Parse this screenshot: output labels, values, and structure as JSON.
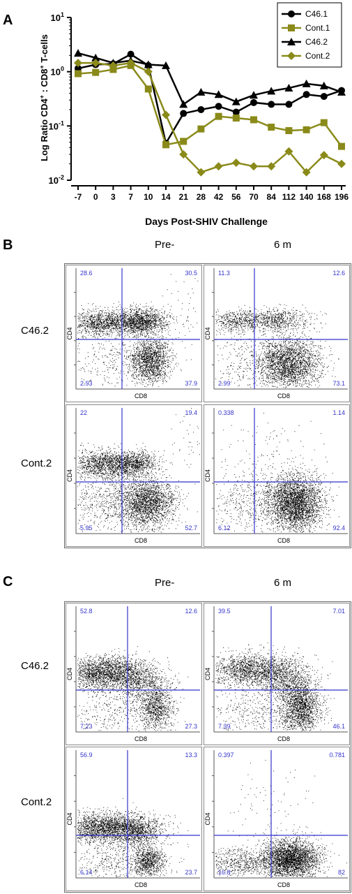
{
  "panel_a": {
    "letter": "A",
    "ylabel_main": "Log Ratio CD4",
    "ylabel_sup1": "+",
    "ylabel_mid": " : CD8",
    "ylabel_sup2": "+",
    "ylabel_tail": " T-cells",
    "xlabel": "Days Post-SHIV Challenge",
    "x_ticks": [
      "-7",
      "0",
      "3",
      "7",
      "10",
      "14",
      "21",
      "28",
      "42",
      "56",
      "70",
      "84",
      "112",
      "140",
      "168",
      "196"
    ],
    "y_ticks": [
      {
        "base": "10",
        "exp": "1",
        "value": 10
      },
      {
        "base": "10",
        "exp": "0",
        "value": 1
      },
      {
        "base": "10",
        "exp": "-1",
        "value": 0.1
      },
      {
        "base": "10",
        "exp": "-2",
        "value": 0.01
      }
    ]
  },
  "chart_data": [
    {
      "type": "line",
      "yscale": "log",
      "ylim": [
        0.01,
        10
      ],
      "xlabel": "Days Post-SHIV Challenge",
      "ylabel": "Log Ratio CD4+ : CD8+ T-cells",
      "legend_position": "top-right",
      "categories": [
        "-7",
        "0",
        "3",
        "7",
        "10",
        "14",
        "21",
        "28",
        "42",
        "56",
        "70",
        "84",
        "112",
        "140",
        "168",
        "196"
      ],
      "series": [
        {
          "name": "C46.1",
          "color": "#000000",
          "marker": "circle",
          "values": [
            1.15,
            1.35,
            1.4,
            2.1,
            1.3,
            0.048,
            0.17,
            0.2,
            0.23,
            0.18,
            0.27,
            0.25,
            0.25,
            0.38,
            0.35,
            0.45
          ]
        },
        {
          "name": "Cont.1",
          "color": "#8a8a1a",
          "marker": "square",
          "values": [
            0.92,
            0.97,
            1.1,
            1.3,
            0.48,
            0.045,
            0.052,
            0.088,
            0.15,
            0.14,
            0.13,
            0.095,
            0.082,
            0.085,
            0.115,
            0.042
          ]
        },
        {
          "name": "C46.2",
          "color": "#000000",
          "marker": "triangle",
          "values": [
            2.2,
            1.8,
            1.45,
            1.6,
            1.35,
            1.3,
            0.25,
            0.42,
            0.38,
            0.28,
            0.37,
            0.44,
            0.5,
            0.6,
            0.55,
            0.42
          ]
        },
        {
          "name": "Cont.2",
          "color": "#8a8a1a",
          "marker": "diamond",
          "values": [
            1.45,
            1.45,
            1.3,
            1.45,
            1.0,
            0.16,
            0.03,
            0.014,
            0.018,
            0.021,
            0.018,
            0.018,
            0.034,
            0.014,
            0.029,
            0.02
          ]
        }
      ]
    },
    {
      "type": "scatter",
      "panel": "B",
      "xlabel": "CD8",
      "ylabel": "CD4",
      "plots": [
        {
          "row": "C46.2",
          "col": "Pre-",
          "quadrants": {
            "ul": "28.6",
            "ur": "30.5",
            "ll": "2.93",
            "lr": "37.9"
          }
        },
        {
          "row": "C46.2",
          "col": "6 m",
          "quadrants": {
            "ul": "11.3",
            "ur": "12.6",
            "ll": "2.99",
            "lr": "73.1"
          }
        },
        {
          "row": "Cont.2",
          "col": "Pre-",
          "quadrants": {
            "ul": "22",
            "ur": "19.4",
            "ll": "5.95",
            "lr": "52.7"
          }
        },
        {
          "row": "Cont.2",
          "col": "6 m",
          "quadrants": {
            "ul": "0.338",
            "ur": "1.14",
            "ll": "6.12",
            "lr": "92.4"
          }
        }
      ]
    },
    {
      "type": "scatter",
      "panel": "C",
      "xlabel": "CD8",
      "ylabel": "CD4",
      "plots": [
        {
          "row": "C46.2",
          "col": "Pre-",
          "quadrants": {
            "ul": "52.8",
            "ur": "12.6",
            "ll": "7.23",
            "lr": "27.3"
          }
        },
        {
          "row": "C46.2",
          "col": "6 m",
          "quadrants": {
            "ul": "39.5",
            "ur": "7.01",
            "ll": "7.39",
            "lr": "46.1"
          }
        },
        {
          "row": "Cont.2",
          "col": "Pre-",
          "quadrants": {
            "ul": "56.9",
            "ur": "13.3",
            "ll": "6.14",
            "lr": "23.7"
          }
        },
        {
          "row": "Cont.2",
          "col": "6 m",
          "quadrants": {
            "ul": "0.397",
            "ur": "0.781",
            "ll": "16.8",
            "lr": "82"
          }
        }
      ]
    }
  ],
  "panel_b": {
    "letter": "B",
    "col_pre": "Pre-",
    "col_6m": "6 m",
    "row_1": "C46.2",
    "row_2": "Cont.2",
    "colors": {
      "gate": "#3333cc",
      "number": "#3333cc",
      "dots": "#000000"
    }
  },
  "panel_c": {
    "letter": "C",
    "col_pre": "Pre-",
    "col_6m": "6 m",
    "row_1": "C46.2",
    "row_2": "Cont.2"
  }
}
